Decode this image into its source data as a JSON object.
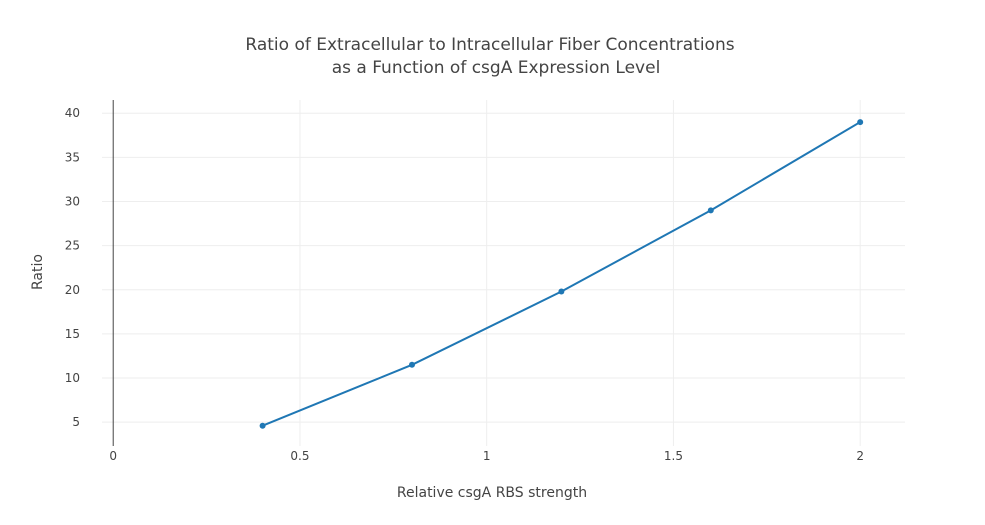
{
  "chart_data": {
    "type": "line",
    "title_lines": [
      "Ratio of Extracellular to Intracellular Fiber Concentrations",
      "as a Function of csgA Expression Level"
    ],
    "xlabel": "Relative csgA RBS strength",
    "ylabel": "Ratio",
    "xlim": [
      -0.03,
      2.12
    ],
    "ylim": [
      2.3,
      41.5
    ],
    "x_ticks": [
      0,
      0.5,
      1,
      1.5,
      2
    ],
    "x_tick_labels": [
      "0",
      "0.5",
      "1",
      "1.5",
      "2"
    ],
    "y_ticks": [
      5,
      10,
      15,
      20,
      25,
      30,
      35,
      40
    ],
    "y_tick_labels": [
      "5",
      "10",
      "15",
      "20",
      "25",
      "30",
      "35",
      "40"
    ],
    "grid": true,
    "zero_line_x": true,
    "series": [
      {
        "color": "#1f77b4",
        "x": [
          0.4,
          0.8,
          1.2,
          1.6,
          2.0
        ],
        "y": [
          4.6,
          11.5,
          19.8,
          29.0,
          39.0
        ]
      }
    ]
  }
}
